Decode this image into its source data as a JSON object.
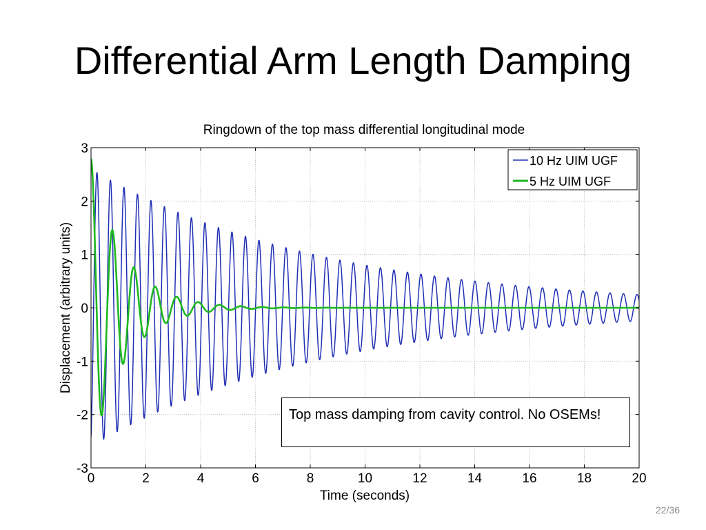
{
  "slide": {
    "title": "Differential Arm Length Damping",
    "annotation": "Top mass damping from cavity control. No OSEMs!",
    "page_number": "22/36"
  },
  "chart_data": {
    "type": "line",
    "title": "Ringdown of the top mass differential longitudinal mode",
    "xlabel": "Time (seconds)",
    "ylabel": "Displacement (arbitrary units)",
    "xlim": [
      0,
      20
    ],
    "ylim": [
      -3,
      3
    ],
    "xticks": [
      0,
      2,
      4,
      6,
      8,
      10,
      12,
      14,
      16,
      18,
      20
    ],
    "yticks": [
      3,
      2,
      1,
      0,
      -1,
      -2,
      -3
    ],
    "grid": true,
    "legend_position": "top-right",
    "series": [
      {
        "name": "10 Hz UIM UGF",
        "color": "#1f2fb4",
        "model": "damped-sine",
        "amplitude": 2.6,
        "frequency_hz": 2.03,
        "decay_time_s": 8.5,
        "phase_rad": -1.2
      },
      {
        "name": "5 Hz UIM UGF",
        "color": "#1fb81f",
        "model": "damped-sine",
        "amplitude": 2.8,
        "frequency_hz": 1.28,
        "decay_time_s": 1.2,
        "phase_rad": 1.5
      }
    ]
  }
}
